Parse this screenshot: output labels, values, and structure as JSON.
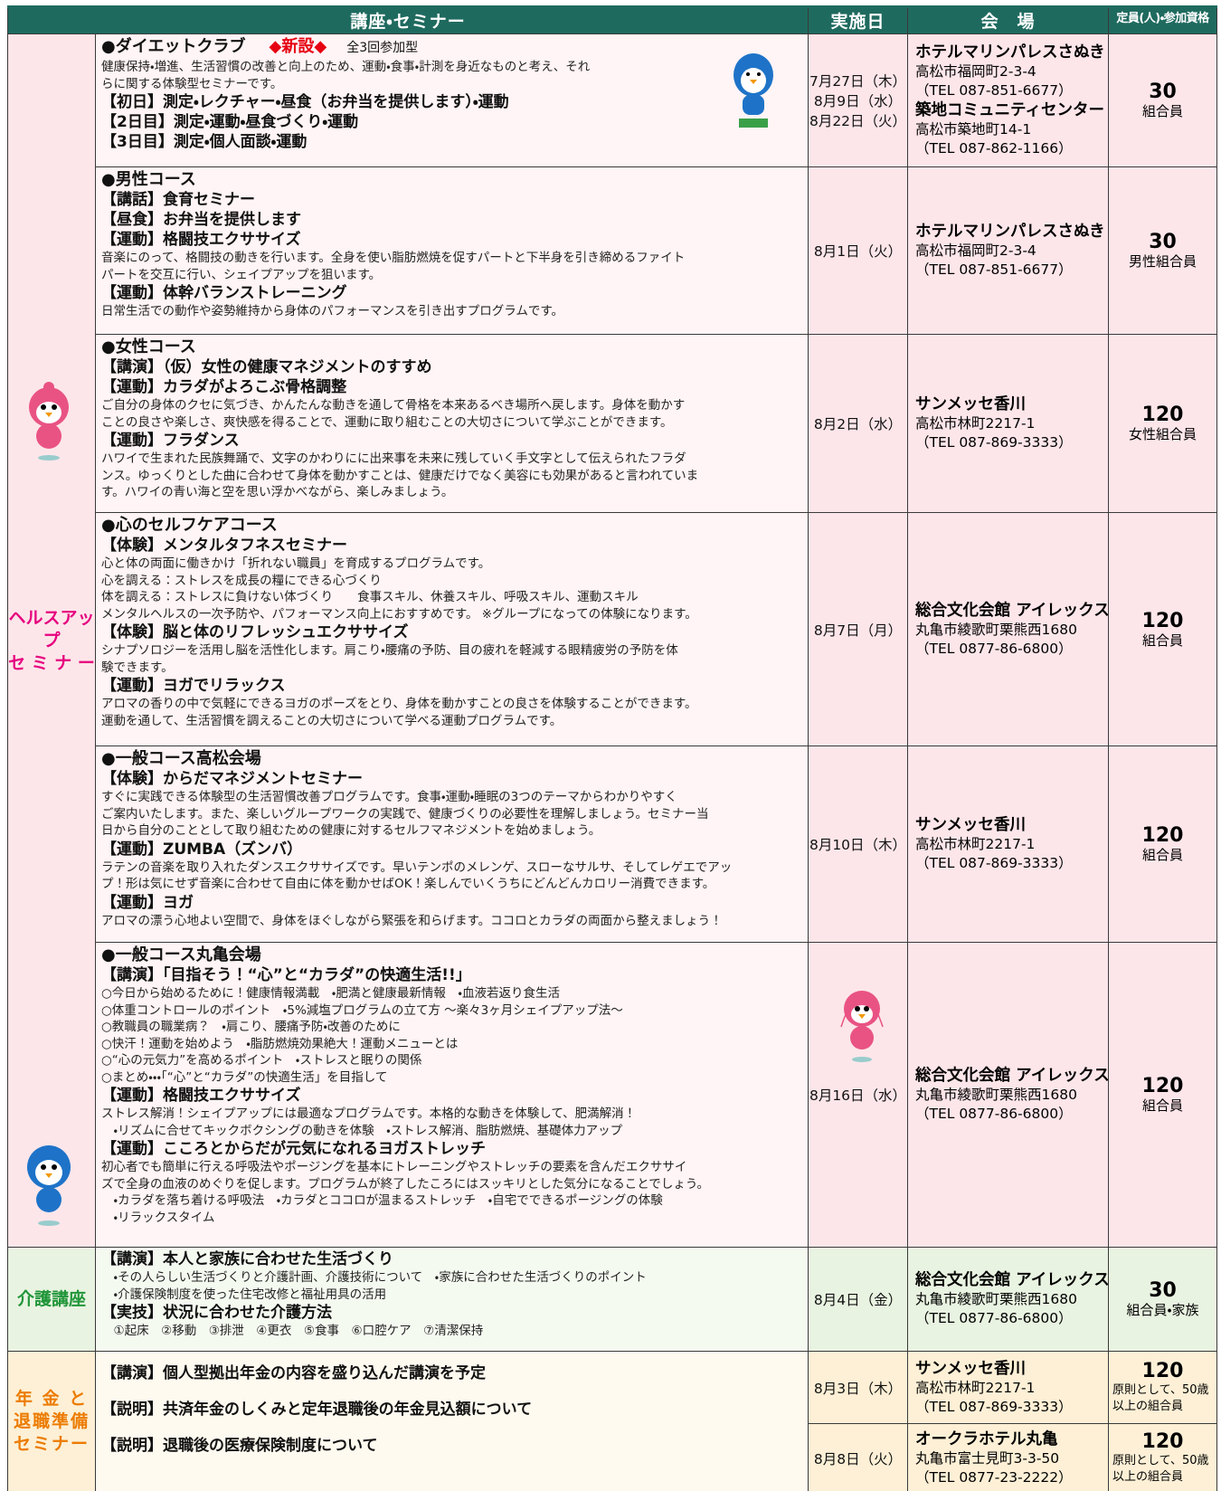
{
  "header": {
    "course": "講座・セミナー",
    "date": "実施日",
    "venue": "会　場",
    "capacity": "定員(人)・参加資格"
  },
  "sections": [
    {
      "category": [
        "ヘルスアップ",
        "セ ミ ナ ー"
      ],
      "rows": [
        {
          "title": "●ダイエットクラブ",
          "badge": "◆新設◆",
          "note": "全3回参加型",
          "blocks": [
            {
              "lines": [
                "健康保持・増進、生活習慣の改善と向上のため、運動・食事・計測を身近なものと考え、それ",
                "らに関する体験型セミナーです。"
              ]
            },
            {
              "heading": "【初日】測定・レクチャー・昼食（お弁当を提供します）・運動"
            },
            {
              "heading": "【2日目】測定・運動・昼食づくり・運動"
            },
            {
              "heading": "【3日目】測定・個人面談・運動"
            }
          ],
          "sessions": [
            {
              "dates": [
                "7月27日（木）",
                "8月9日（水）",
                "8月22日（火）"
              ],
              "venues": [
                {
                  "name": "ホテルマリンパレスさぬき",
                  "address": "高松市福岡町2-3-4",
                  "tel": "（TEL 087-851-6677）"
                },
                {
                  "name": "築地コミュニティセンター",
                  "address": "高松市築地町14-1",
                  "tel": "（TEL 087-862-1166）"
                }
              ],
              "capacity": {
                "number": 30,
                "label": [
                  "組合員"
                ]
              }
            }
          ]
        },
        {
          "title": "●男性コース",
          "blocks": [
            {
              "heading": "【講話】食育セミナー"
            },
            {
              "heading": "【昼食】お弁当を提供します"
            },
            {
              "heading": "【運動】格闘技エクササイズ",
              "lines": [
                "音楽にのって、格闘技の動きを行います。全身を使い脂肪燃焼を促すパートと下半身を引き締めるファイト",
                "パートを交互に行い、シェイプアップを狙います。"
              ]
            },
            {
              "heading": "【運動】体幹バランストレーニング",
              "lines": [
                "日常生活での動作や姿勢維持から身体のパフォーマンスを引き出すプログラムです。"
              ]
            }
          ],
          "sessions": [
            {
              "dates": [
                "8月1日（火）"
              ],
              "venues": [
                {
                  "name": "ホテルマリンパレスさぬき",
                  "address": "高松市福岡町2-3-4",
                  "tel": "（TEL 087-851-6677）"
                }
              ],
              "capacity": {
                "number": 30,
                "label": [
                  "男性組合員"
                ]
              }
            }
          ]
        },
        {
          "title": "●女性コース",
          "blocks": [
            {
              "heading": "【講演】（仮）女性の健康マネジメントのすすめ"
            },
            {
              "heading": "【運動】カラダがよろこぶ骨格調整",
              "lines": [
                "ご自分の身体のクセに気づき、かんたんな動きを通して骨格を本来あるべき場所へ戻します。身体を動かす",
                "ことの良さや楽しさ、爽快感を得ることで、運動に取り組むことの大切さについて学ぶことができます。"
              ]
            },
            {
              "heading": "【運動】フラダンス",
              "lines": [
                "ハワイで生まれた民族舞踊で、文字のかわりにに出来事を未来に残していく手文字として伝えられたフラダ",
                "ンス。ゆっくりとした曲に合わせて身体を動かすことは、健康だけでなく美容にも効果があると言われていま",
                "す。ハワイの青い海と空を思い浮かべながら、楽しみましょう。"
              ]
            }
          ],
          "sessions": [
            {
              "dates": [
                "8月2日（水）"
              ],
              "venues": [
                {
                  "name": "サンメッセ香川",
                  "address": "高松市林町2217-1",
                  "tel": "（TEL 087-869-3333）"
                }
              ],
              "capacity": {
                "number": 120,
                "label": [
                  "女性組合員"
                ]
              }
            }
          ]
        },
        {
          "title": "●心のセルフケアコース",
          "blocks": [
            {
              "heading": "【体験】メンタルタフネスセミナー",
              "lines": [
                "心と体の両面に働きかけ「折れない職員」を育成するプログラムです。",
                "心を調える：ストレスを成長の糧にできる心づくり",
                "体を調える：ストレスに負けない体づくり　　食事スキル、休養スキル、呼吸スキル、運動スキル",
                "メンタルヘルスの一次予防や、パフォーマンス向上におすすめです。 ※グループになっての体験になります。"
              ]
            },
            {
              "heading": "【体験】脳と体のリフレッシュエクササイズ",
              "lines": [
                "シナプソロジーを活用し脳を活性化します。肩こり・腰痛の予防、目の疲れを軽減する眼精疲労の予防を体",
                "験できます。"
              ]
            },
            {
              "heading": "【運動】ヨガでリラックス",
              "lines": [
                "アロマの香りの中で気軽にできるヨガのポーズをとり、身体を動かすことの良さを体験することができます。",
                "運動を通して、生活習慣を調えることの大切さについて学べる運動プログラムです。"
              ]
            }
          ],
          "sessions": [
            {
              "dates": [
                "8月7日（月）"
              ],
              "venues": [
                {
                  "name": "総合文化会館 アイレックス",
                  "address": "丸亀市綾歌町栗熊西1680",
                  "tel": "（TEL 0877-86-6800）"
                }
              ],
              "capacity": {
                "number": 120,
                "label": [
                  "組合員"
                ]
              }
            }
          ]
        },
        {
          "title": "●一般コース高松会場",
          "blocks": [
            {
              "heading": "【体験】からだマネジメントセミナー",
              "lines": [
                "すぐに実践できる体験型の生活習慣改善プログラムです。食事・運動・睡眠の3つのテーマからわかりやすく",
                "ご案内いたします。また、楽しいグループワークの実践で、健康づくりの必要性を理解しましょう。セミナー当",
                "日から自分のこととして取り組むための健康に対するセルフマネジメントを始めましょう。"
              ]
            },
            {
              "heading": "【運動】ZUMBA（ズンバ）",
              "lines": [
                "ラテンの音楽を取り入れたダンスエクササイズです。早いテンポのメレンゲ、スローなサルサ、そしてレゲエでアッ",
                "プ！形は気にせず音楽に合わせて自由に体を動かせばOK！楽しんでいくうちにどんどんカロリー消費できます。"
              ]
            },
            {
              "heading": "【運動】ヨガ",
              "lines": [
                "アロマの漂う心地よい空間で、身体をほぐしながら緊張を和らげます。ココロとカラダの両面から整えましょう！"
              ]
            }
          ],
          "sessions": [
            {
              "dates": [
                "8月10日（木）"
              ],
              "venues": [
                {
                  "name": "サンメッセ香川",
                  "address": "高松市林町2217-1",
                  "tel": "（TEL 087-869-3333）"
                }
              ],
              "capacity": {
                "number": 120,
                "label": [
                  "組合員"
                ]
              }
            }
          ]
        },
        {
          "title": "●一般コース丸亀会場",
          "blocks": [
            {
              "heading": "【講演】「目指そう！“心”と“カラダ”の快適生活!!」",
              "lines": [
                "○今日から始めるために！健康情報満載　・肥満と健康最新情報　・血液若返り食生活",
                "○体重コントロールのポイント　・5%減塩プログラムの立て方 〜楽々3ヶ月シェイプアップ法〜",
                "○教職員の職業病？　・肩こり、腰痛予防・改善のために",
                "○快汗！運動を始めよう　・脂肪燃焼効果絶大！運動メニューとは",
                "○“心の元気力”を高めるポイント　・ストレスと眠りの関係",
                "○まとめ・・・「“心”と“カラダ”の快適生活」を目指して"
              ]
            },
            {
              "heading": "【運動】格闘技エクササイズ",
              "lines": [
                "ストレス解消！シェイプアップには最適なプログラムです。本格的な動きを体験して、肥満解消！",
                "　・リズムに合せてキックボクシングの動きを体験　・ストレス解消、脂肪燃焼、基礎体力アップ"
              ]
            },
            {
              "heading": "【運動】こころとからだが元気になれるヨガストレッチ",
              "lines": [
                "初心者でも簡単に行える呼吸法やポージングを基本にトレーニングやストレッチの要素を含んだエクササイ",
                "ズで全身の血液のめぐりを促します。プログラムが終了したころにはスッキリとした気分になることでしょう。",
                "　・カラダを落ち着ける呼吸法　・カラダとココロが温まるストレッチ　・自宅でできるポージングの体験",
                "　・リラックスタイム"
              ]
            }
          ],
          "sessions": [
            {
              "dates": [
                "8月16日（水）"
              ],
              "venues": [
                {
                  "name": "総合文化会館 アイレックス",
                  "address": "丸亀市綾歌町栗熊西1680",
                  "tel": "（TEL 0877-86-6800）"
                }
              ],
              "capacity": {
                "number": 120,
                "label": [
                  "組合員"
                ]
              }
            }
          ]
        }
      ]
    },
    {
      "category": [
        "介護講座"
      ],
      "rows": [
        {
          "blocks": [
            {
              "heading": "【講演】本人と家族に合わせた生活づくり",
              "lines": [
                "　・その人らしい生活づくりと介護計画、介護技術について　・家族に合わせた生活づくりのポイント",
                "　・介護保険制度を使った住宅改修と福祉用具の活用"
              ]
            },
            {
              "heading": "【実技】状況に合わせた介護方法",
              "lines": [
                "　①起床　②移動　③排泄　④更衣　⑤食事　⑥口腔ケア　⑦清潔保持"
              ]
            }
          ],
          "sessions": [
            {
              "dates": [
                "8月4日（金）"
              ],
              "venues": [
                {
                  "name": "総合文化会館 アイレックス",
                  "address": "丸亀市綾歌町栗熊西1680",
                  "tel": "（TEL 0877-86-6800）"
                }
              ],
              "capacity": {
                "number": 30,
                "label": [
                  "組合員・家族"
                ]
              }
            }
          ]
        }
      ]
    },
    {
      "category": [
        "年 金 と",
        "退職準備",
        "セミナー"
      ],
      "rows": [
        {
          "blocks": [
            {
              "heading": "【講演】個人型拠出年金の内容を盛り込んだ講演を予定"
            },
            {
              "heading": "【説明】共済年金のしくみと定年退職後の年金見込額について"
            },
            {
              "heading": "【説明】退職後の医療保険制度について"
            }
          ],
          "sessions": [
            {
              "dates": [
                "8月3日（木）"
              ],
              "venues": [
                {
                  "name": "サンメッセ香川",
                  "address": "高松市林町2217-1",
                  "tel": "（TEL 087-869-3333）"
                }
              ],
              "capacity": {
                "number": 120,
                "label": [
                  "原則として、50歳",
                  "以上の組合員"
                ]
              }
            },
            {
              "dates": [
                "8月8日（火）"
              ],
              "venues": [
                {
                  "name": "オークラホテル丸亀",
                  "address": "丸亀市富士見町3-3-50",
                  "tel": "（TEL 0877-23-2222）"
                }
              ],
              "capacity": {
                "number": 120,
                "label": [
                  "原則として、50歳",
                  "以上の組合員"
                ]
              }
            }
          ]
        }
      ]
    }
  ]
}
